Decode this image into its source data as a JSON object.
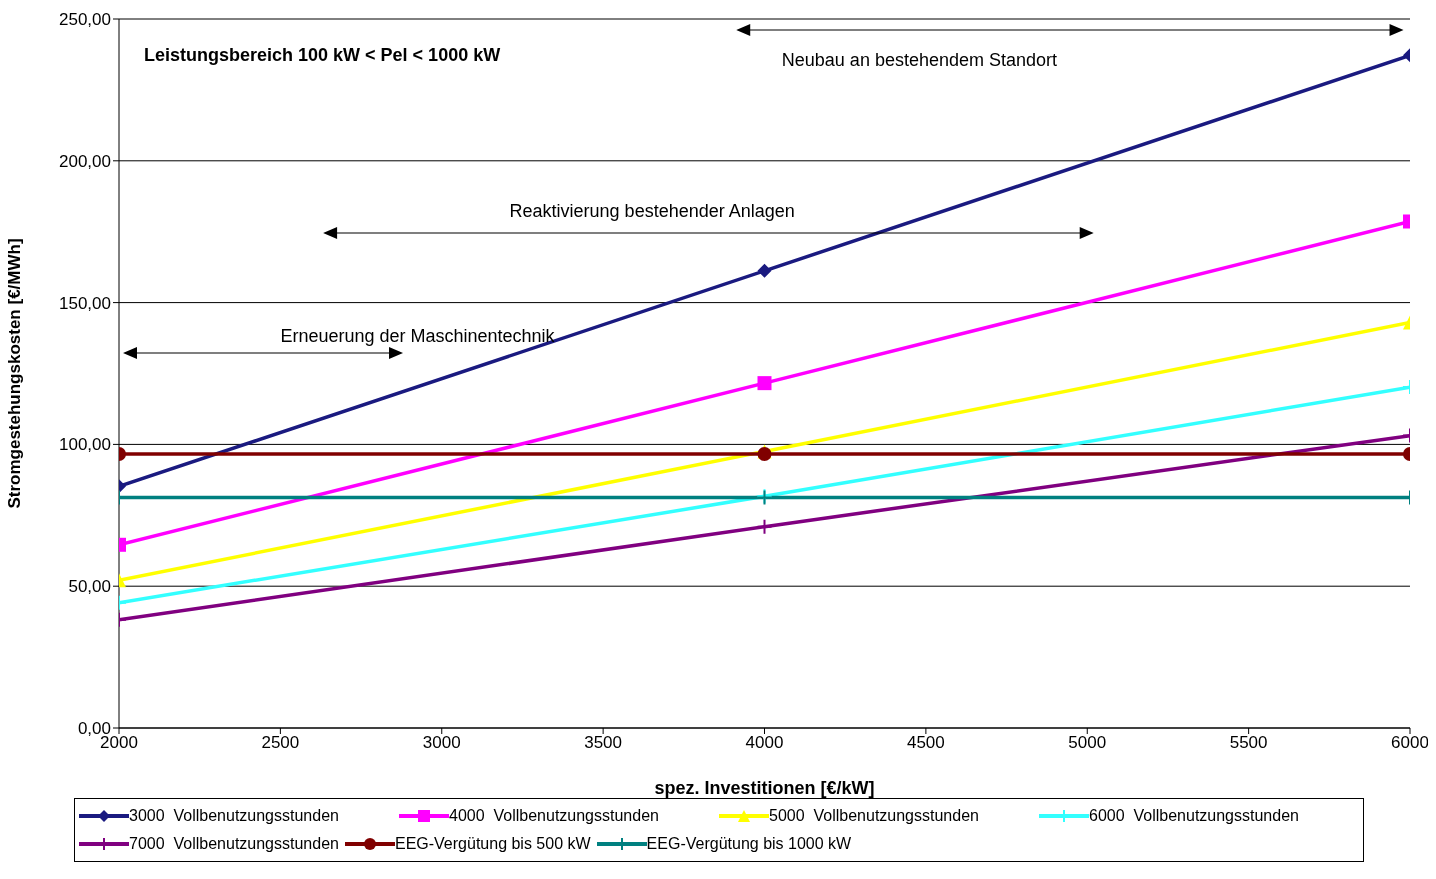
{
  "chart_data": {
    "type": "line",
    "title": "Leistungsbereich 100 kW < Pel < 1000 kW",
    "xlabel": "spez. Investitionen [€/kW]",
    "ylabel": "Stromgestehungskosten [€/MWh]",
    "x": [
      2000,
      4000,
      6000
    ],
    "series": [
      {
        "name": "3000  Vollbenutzungsstunden",
        "color": "#1a1a80",
        "marker": "diamond",
        "values": [
          85.2,
          161.2,
          237.2
        ]
      },
      {
        "name": "4000  Vollbenutzungsstunden",
        "color": "#ff00ff",
        "marker": "square",
        "values": [
          64.6,
          121.6,
          178.6
        ]
      },
      {
        "name": "5000  Vollbenutzungsstunden",
        "color": "#ffff00",
        "marker": "triangle",
        "values": [
          52.1,
          97.5,
          143
        ]
      },
      {
        "name": "6000  Vollbenutzungsstunden",
        "color": "#33ffff",
        "marker": "cross",
        "values": [
          44.2,
          81.7,
          120.2
        ]
      },
      {
        "name": "7000  Vollbenutzungsstunden",
        "color": "#800080",
        "marker": "cross",
        "values": [
          38.2,
          71,
          103.1
        ]
      },
      {
        "name": "EEG-Vergütung bis 500 kW",
        "color": "#800000",
        "marker": "circle",
        "values": [
          96.6,
          96.6,
          96.6
        ]
      },
      {
        "name": "EEG-Vergütung bis 1000 kW",
        "color": "#008080",
        "marker": "cross",
        "values": [
          81.3,
          81.3,
          81.3
        ]
      }
    ],
    "xlim": [
      2000,
      6000
    ],
    "xticks": [
      2000,
      2500,
      3000,
      3500,
      4000,
      4500,
      5000,
      5500,
      6000
    ],
    "ylim": [
      0,
      250
    ],
    "yticks": [
      {
        "value": 0,
        "label": "0,00"
      },
      {
        "value": 50,
        "label": "50,00"
      },
      {
        "value": 100,
        "label": "100,00"
      },
      {
        "value": 150,
        "label": "150,00"
      },
      {
        "value": 200,
        "label": "200,00"
      },
      {
        "value": 250,
        "label": "250,00"
      }
    ],
    "grid": "y",
    "legend": "bottom",
    "line_style": "solid",
    "annotations": [
      "Erneuerung der Maschinentechnik",
      "Reaktivierung bestehender Anlagen",
      "Neubau an bestehendem Standort"
    ]
  }
}
